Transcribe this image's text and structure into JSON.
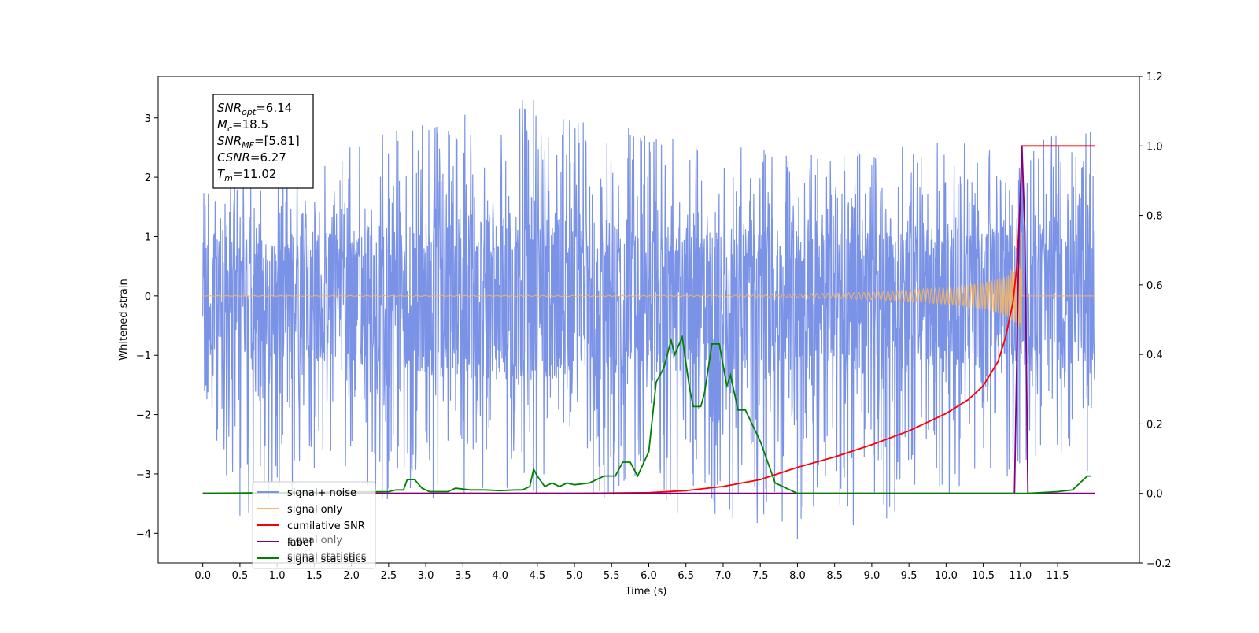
{
  "chart_data": {
    "type": "line",
    "title": "",
    "xlabel": "Time (s)",
    "ylabel": "Whitened strain",
    "xlim": [
      -0.6,
      12.6
    ],
    "ylim": [
      -4.5,
      3.7
    ],
    "ylim_right": [
      -0.2,
      1.2
    ],
    "x_ticks": [
      0.0,
      0.5,
      1.0,
      1.5,
      2.0,
      2.5,
      3.0,
      3.5,
      4.0,
      4.5,
      5.0,
      5.5,
      6.0,
      6.5,
      7.0,
      7.5,
      8.0,
      8.5,
      9.0,
      9.5,
      10.0,
      10.5,
      11.0,
      11.5
    ],
    "x_tick_labels": [
      "0.0",
      "0.5",
      "1.0",
      "1.5",
      "2.0",
      "2.5",
      "3.0",
      "3.5",
      "4.0",
      "4.5",
      "5.0",
      "5.5",
      "6.0",
      "6.5",
      "7.0",
      "7.5",
      "8.0",
      "8.5",
      "9.0",
      "9.5",
      "10.0",
      "10.5",
      "11.0",
      "11.5"
    ],
    "y_ticks": [
      -4,
      -3,
      -2,
      -1,
      0,
      1,
      2,
      3
    ],
    "y_tick_labels": [
      "−4",
      "−3",
      "−2",
      "−1",
      "0",
      "1",
      "2",
      "3"
    ],
    "y_ticks_right": [
      -0.2,
      0.0,
      0.2,
      0.4,
      0.6,
      0.8,
      1.0,
      1.2
    ],
    "y_tick_labels_right": [
      "−0.2",
      "0.0",
      "0.2",
      "0.4",
      "0.6",
      "0.8",
      "1.0",
      "1.2"
    ],
    "grid": false,
    "legend_position": "lower-left",
    "annotation": {
      "lines": [
        {
          "sym": "SNR",
          "sub": "opt",
          "val": "=6.14"
        },
        {
          "sym": "M",
          "sub": "c",
          "val": "=18.5"
        },
        {
          "sym": "SNR",
          "sub": "MF",
          "val": "=[5.81]"
        },
        {
          "sym": "CSNR",
          "sub": "",
          "val": "=6.27"
        },
        {
          "sym": "T",
          "sub": "m",
          "val": "=11.02"
        }
      ]
    },
    "series": [
      {
        "name": "signal+ noise",
        "color": "#7b93e6",
        "axis": "left",
        "kind": "noise",
        "x_range": [
          0.0,
          12.0
        ],
        "envelope_upper": [
          [
            0.0,
            2.0
          ],
          [
            4.3,
            3.3
          ],
          [
            6.0,
            2.8
          ],
          [
            8.0,
            2.4
          ],
          [
            10.0,
            2.6
          ],
          [
            12.0,
            2.8
          ]
        ],
        "envelope_lower": [
          [
            0.0,
            -2.0
          ],
          [
            0.5,
            -3.7
          ],
          [
            3.1,
            -3.4
          ],
          [
            5.4,
            -3.4
          ],
          [
            8.0,
            -4.1
          ],
          [
            9.2,
            -3.75
          ],
          [
            12.0,
            -2.6
          ]
        ],
        "spikes": [
          [
            0.5,
            -3.7
          ],
          [
            1.5,
            -2.9
          ],
          [
            3.1,
            -3.4
          ],
          [
            4.3,
            3.3
          ],
          [
            4.45,
            3.3
          ],
          [
            5.4,
            -3.4
          ],
          [
            5.6,
            -3.2
          ],
          [
            6.6,
            -3.2
          ],
          [
            8.0,
            -4.1
          ],
          [
            9.2,
            -3.75
          ],
          [
            11.9,
            -2.95
          ]
        ]
      },
      {
        "name": "signal only",
        "color": "#f5b565",
        "axis": "left",
        "kind": "chirp",
        "x_range": [
          0.0,
          12.0
        ],
        "merger_time": 11.02,
        "amplitude_points": [
          [
            0.0,
            0.005
          ],
          [
            7.0,
            0.01
          ],
          [
            9.0,
            0.06
          ],
          [
            10.0,
            0.14
          ],
          [
            10.5,
            0.22
          ],
          [
            10.8,
            0.33
          ],
          [
            11.0,
            0.55
          ],
          [
            11.02,
            1.2
          ]
        ]
      },
      {
        "name": "cumilative SNR",
        "color": "#ff0000",
        "axis": "right",
        "x": [
          0.0,
          5.0,
          6.0,
          6.5,
          7.0,
          7.5,
          8.0,
          8.5,
          9.0,
          9.5,
          10.0,
          10.3,
          10.5,
          10.7,
          10.8,
          10.9,
          10.95,
          11.0,
          11.02,
          11.1,
          11.5,
          12.0
        ],
        "y": [
          0.0,
          0.0,
          0.002,
          0.008,
          0.02,
          0.04,
          0.075,
          0.105,
          0.14,
          0.18,
          0.23,
          0.27,
          0.31,
          0.38,
          0.45,
          0.55,
          0.65,
          0.85,
          1.0,
          1.0,
          1.0,
          1.0
        ]
      },
      {
        "name": "label",
        "color": "#800080",
        "axis": "right",
        "x": [
          0.0,
          10.92,
          10.98,
          11.02,
          11.06,
          11.1,
          12.0
        ],
        "y": [
          0.0,
          0.0,
          0.75,
          1.0,
          0.75,
          0.0,
          0.0
        ]
      },
      {
        "name": "signal statistics",
        "color": "#008000",
        "axis": "right",
        "x": [
          0.0,
          2.5,
          2.6,
          2.7,
          2.75,
          2.85,
          2.95,
          3.05,
          3.3,
          3.4,
          3.6,
          3.8,
          4.0,
          4.2,
          4.3,
          4.4,
          4.45,
          4.5,
          4.6,
          4.7,
          4.8,
          4.9,
          5.0,
          5.2,
          5.4,
          5.55,
          5.65,
          5.75,
          5.85,
          6.0,
          6.1,
          6.2,
          6.3,
          6.35,
          6.45,
          6.55,
          6.6,
          6.7,
          6.75,
          6.85,
          6.95,
          7.05,
          7.1,
          7.2,
          7.3,
          7.5,
          7.7,
          7.9,
          8.0,
          9.0,
          10.0,
          11.0,
          11.1,
          11.5,
          11.7,
          11.9,
          11.95
        ],
        "y": [
          0.0,
          0.005,
          0.01,
          0.01,
          0.04,
          0.04,
          0.015,
          0.005,
          0.005,
          0.015,
          0.01,
          0.01,
          0.008,
          0.01,
          0.01,
          0.02,
          0.07,
          0.05,
          0.02,
          0.03,
          0.02,
          0.03,
          0.025,
          0.03,
          0.05,
          0.05,
          0.09,
          0.09,
          0.05,
          0.12,
          0.32,
          0.36,
          0.44,
          0.4,
          0.45,
          0.3,
          0.25,
          0.25,
          0.29,
          0.43,
          0.43,
          0.31,
          0.34,
          0.24,
          0.24,
          0.15,
          0.03,
          0.01,
          0.0,
          0.0,
          0.0,
          0.0,
          0.0,
          0.005,
          0.01,
          0.05,
          0.05
        ]
      }
    ],
    "legend": [
      {
        "label": "signal+ noise",
        "color": "#7b93e6"
      },
      {
        "label": "signal only",
        "color": "#f5b565"
      },
      {
        "label": "cumilative SNR",
        "color": "#ff0000"
      },
      {
        "label": "label",
        "color": "#800080"
      },
      {
        "label": "signal statistics",
        "color": "#008000"
      }
    ],
    "hidden_legend_text": [
      "signal only",
      "signal statistics"
    ]
  }
}
